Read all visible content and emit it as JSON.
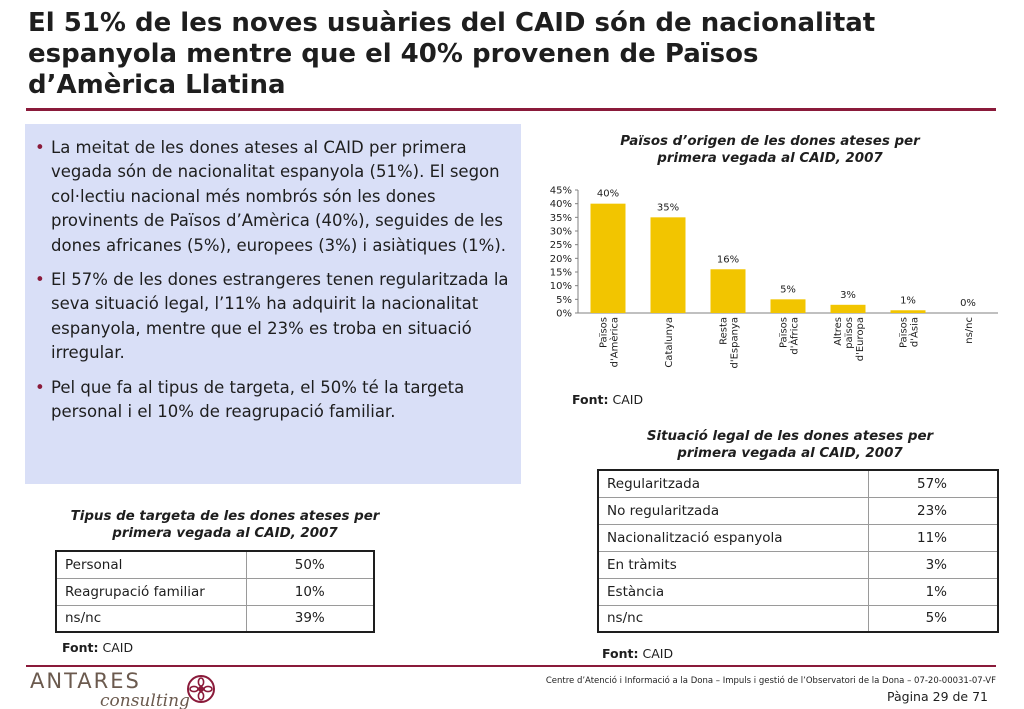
{
  "title": {
    "line1": "El 51% de les noves usuàries del CAID són de nacionalitat",
    "line2": "espanyola mentre que el 40% provenen de Països",
    "line3": "d’Amèrica Llatina"
  },
  "bullets": [
    "La meitat de les dones ateses al CAID per primera vegada són de nacionalitat espanyola (51%). El segon col·lectiu nacional més nombrós són les dones provinents de Països d’Amèrica (40%), seguides de les dones africanes (5%), europees (3%) i asiàtiques (1%).",
    "El 57% de les dones estrangeres tenen regularitzada la seva situació legal, l’11% ha adquirit la nacionalitat espanyola, mentre que el 23% es troba en situació irregular.",
    "Pel que fa al tipus de targeta, el 50% té la targeta personal i el 10% de reagrupació familiar."
  ],
  "chart_data": {
    "type": "bar",
    "title": "Països d’origen de les dones ateses per primera vegada al CAID, 2007",
    "title_line1": "Països d’origen de les dones ateses per",
    "title_line2": "primera vegada al CAID, 2007",
    "categories": [
      [
        "Països",
        "d'Amèrica"
      ],
      [
        "Catalunya"
      ],
      [
        "Resta",
        "d'Espanya"
      ],
      [
        "Països",
        "d'Àfrica"
      ],
      [
        "Altres",
        "països",
        "d'Europa"
      ],
      [
        "Països",
        "d'Àsia"
      ],
      [
        "ns/nc"
      ]
    ],
    "values": [
      40,
      35,
      16,
      5,
      3,
      1,
      0
    ],
    "value_labels": [
      "40%",
      "35%",
      "16%",
      "5%",
      "3%",
      "1%",
      "0%"
    ],
    "ylim": [
      0,
      45
    ],
    "yticks": [
      "0%",
      "5%",
      "10%",
      "15%",
      "20%",
      "25%",
      "30%",
      "35%",
      "40%",
      "45%"
    ],
    "bar_color": "#f2c500",
    "xlabel": "",
    "ylabel": ""
  },
  "source": {
    "label": "Font:",
    "value": "CAID"
  },
  "legal_table": {
    "title_line1": "Situació legal de les dones ateses per",
    "title_line2": "primera vegada al CAID, 2007",
    "rows": [
      {
        "label": "Regularitzada",
        "value": "57%"
      },
      {
        "label": "No regularitzada",
        "value": "23%"
      },
      {
        "label": "Nacionalització espanyola",
        "value": "11%"
      },
      {
        "label": "En tràmits",
        "value": "3%"
      },
      {
        "label": "Estància",
        "value": "1%"
      },
      {
        "label": "ns/nc",
        "value": "5%"
      }
    ]
  },
  "card_table": {
    "title_line1": "Tipus de targeta de les dones ateses per",
    "title_line2": "primera vegada al CAID, 2007",
    "rows": [
      {
        "label": "Personal",
        "value": "50%"
      },
      {
        "label": "Reagrupació familiar",
        "value": "10%"
      },
      {
        "label": "ns/nc",
        "value": "39%"
      }
    ]
  },
  "footer": {
    "logo_word1": "ANTARES",
    "logo_word2": "consulting",
    "text": "Centre d’Atenció i Informació a la Dona – Impuls i gestió de l’Observatori de la Dona – 07-20-00031-07-VF",
    "page": "Pàgina 29 de 71"
  },
  "colors": {
    "accent": "#8a1a3a",
    "box_bg": "#d9dff7",
    "bar": "#f2c500"
  }
}
